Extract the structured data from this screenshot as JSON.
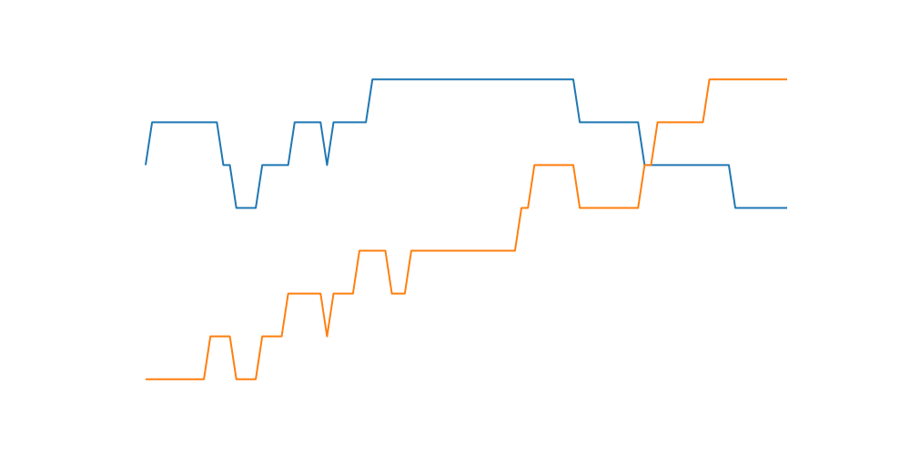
{
  "chart_data": {
    "type": "line",
    "axes_visible": false,
    "grid": false,
    "legend": "none",
    "xlim": [
      0,
      99
    ],
    "ylim": [
      -0.75,
      7.75
    ],
    "series": [
      {
        "color": "#1f77b4",
        "x": [
          0,
          1,
          11,
          12,
          13,
          14,
          17,
          18,
          22,
          23,
          27,
          28,
          29,
          30,
          34,
          35,
          36,
          66,
          67,
          76,
          77,
          78,
          90,
          91,
          99
        ],
        "y": [
          5,
          6,
          6,
          5,
          5,
          4,
          4,
          5,
          5,
          6,
          6,
          5,
          6,
          6,
          6,
          7,
          7,
          7,
          6,
          6,
          5,
          5,
          5,
          4,
          4
        ]
      },
      {
        "color": "#ff7f0e",
        "x": [
          0,
          9,
          10,
          13,
          14,
          17,
          18,
          21,
          22,
          27,
          28,
          29,
          32,
          33,
          37,
          38,
          40,
          41,
          57,
          58,
          59,
          60,
          66,
          67,
          76,
          77,
          78,
          79,
          86,
          87,
          99
        ],
        "y": [
          0,
          0,
          1,
          1,
          0,
          0,
          1,
          1,
          2,
          2,
          1,
          2,
          2,
          3,
          3,
          2,
          2,
          3,
          3,
          4,
          4,
          5,
          5,
          4,
          4,
          5,
          5,
          6,
          6,
          7,
          7
        ]
      }
    ]
  }
}
